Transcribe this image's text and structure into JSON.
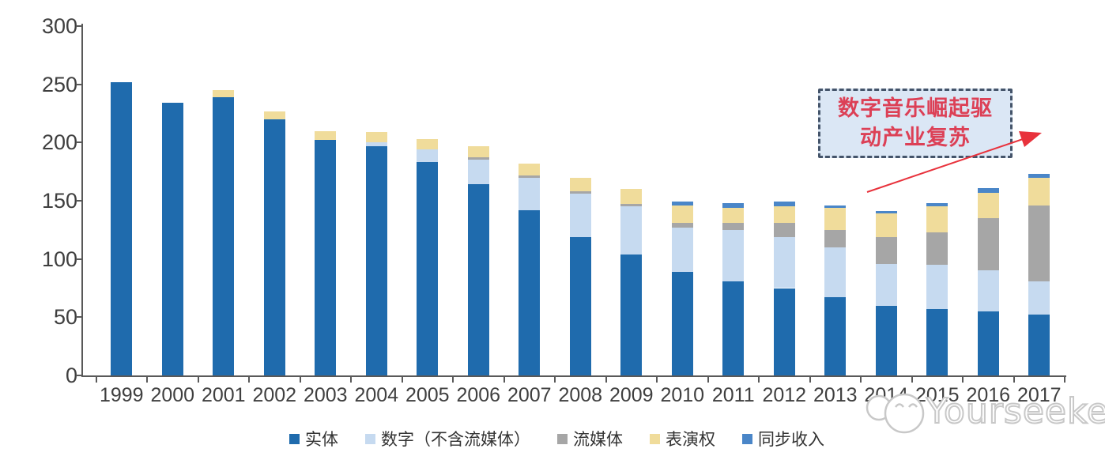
{
  "chart_data": {
    "type": "bar",
    "stacked": true,
    "title": "",
    "categories": [
      "1999",
      "2000",
      "2001",
      "2002",
      "2003",
      "2004",
      "2005",
      "2006",
      "2007",
      "2008",
      "2009",
      "2010",
      "2011",
      "2012",
      "2013",
      "2014",
      "2015",
      "2016",
      "2017"
    ],
    "series": [
      {
        "name": "实体",
        "color": "#1F6BAD",
        "values": [
          252,
          234,
          239,
          220,
          202,
          197,
          183,
          164,
          142,
          119,
          104,
          89,
          81,
          75,
          67,
          60,
          57,
          55,
          52
        ]
      },
      {
        "name": "数字（不含流媒体）",
        "color": "#C6DAF0",
        "values": [
          0,
          0,
          0,
          0,
          0,
          3,
          11,
          21,
          28,
          37,
          41,
          38,
          44,
          44,
          43,
          36,
          38,
          35,
          29
        ]
      },
      {
        "name": "流媒体",
        "color": "#A6A6A6",
        "values": [
          0,
          0,
          0,
          0,
          0,
          0,
          0,
          2,
          2,
          2,
          2,
          4,
          6,
          12,
          15,
          23,
          28,
          45,
          65
        ]
      },
      {
        "name": "表演权",
        "color": "#F0DC9B",
        "values": [
          0,
          0,
          6,
          7,
          8,
          9,
          9,
          10,
          10,
          12,
          13,
          15,
          13,
          14,
          19,
          20,
          22,
          22,
          24
        ]
      },
      {
        "name": "同步收入",
        "color": "#4A86C8",
        "values": [
          0,
          0,
          0,
          0,
          0,
          0,
          0,
          0,
          0,
          0,
          0,
          3,
          4,
          4,
          2,
          2,
          3,
          4,
          3
        ]
      }
    ],
    "totals": [
      252,
      234,
      245,
      227,
      210,
      209,
      203,
      197,
      182,
      170,
      160,
      149,
      148,
      149,
      146,
      141,
      148,
      161,
      173
    ],
    "xlabel": "",
    "ylabel": "",
    "ylim": [
      0,
      300
    ],
    "yticks": [
      0,
      50,
      100,
      150,
      200,
      250,
      300
    ],
    "grid": false,
    "legend_position": "bottom"
  },
  "annotation": {
    "text": "数字音乐崛起驱动产业复苏",
    "line1": "数字音乐崛起驱",
    "line2": "动产业复苏"
  },
  "watermark": {
    "text": "Yourseeker"
  },
  "colors": {
    "physical_blue": "#1F6BAD",
    "digital_light_blue": "#C6DAF0",
    "streaming_gray": "#A6A6A6",
    "performance_yellow": "#F0DC9B",
    "sync_blue": "#4A86C8",
    "axis": "#595959",
    "tick_label": "#3F3F3F",
    "annotation_border": "#44546A",
    "annotation_fill": "#DBE7F5",
    "annotation_text_red": "#DC4056",
    "arrow_red": "#E8323C",
    "watermark_gray": "#C8C8C8"
  }
}
